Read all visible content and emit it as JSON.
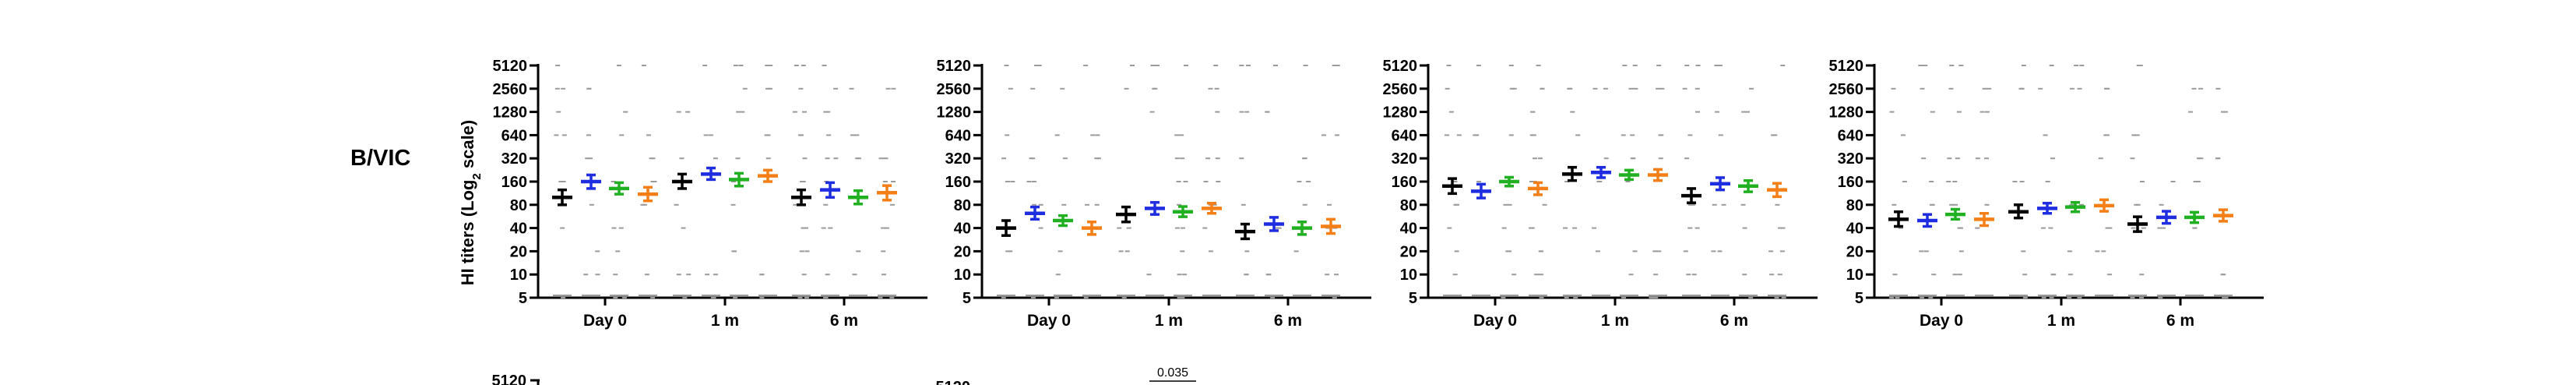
{
  "row_label": "B/VIC",
  "ylabel_prefix": "HI titers (Log",
  "ylabel_sub": "2",
  "ylabel_suffix": " scale)",
  "annotation": "0.035",
  "colors": {
    "group1": "#000000",
    "group2": "#1f2de0",
    "group3": "#21b021",
    "group4": "#f57f17",
    "dots": "#9a9a9a"
  },
  "chart_data": [
    {
      "type": "scatter",
      "title": "",
      "xlabel": "",
      "ylabel": "HI titers (Log2 scale)",
      "yscale": "log2",
      "ylim": [
        5,
        5120
      ],
      "yticks": [
        "5",
        "10",
        "20",
        "40",
        "80",
        "160",
        "320",
        "640",
        "1280",
        "2560",
        "5120"
      ],
      "categories": [
        "Day 0",
        "1 m",
        "6 m"
      ],
      "series": [
        {
          "color": "#000000",
          "mean": [
            100,
            160,
            100
          ],
          "lo": [
            80,
            130,
            80
          ],
          "hi": [
            125,
            200,
            125
          ]
        },
        {
          "color": "#1f2de0",
          "mean": [
            160,
            200,
            125
          ],
          "lo": [
            130,
            170,
            100
          ],
          "hi": [
            195,
            240,
            155
          ]
        },
        {
          "color": "#21b021",
          "mean": [
            130,
            170,
            100
          ],
          "lo": [
            110,
            140,
            82
          ],
          "hi": [
            155,
            205,
            122
          ]
        },
        {
          "color": "#f57f17",
          "mean": [
            110,
            190,
            115
          ],
          "lo": [
            90,
            160,
            92
          ],
          "hi": [
            135,
            225,
            142
          ]
        }
      ]
    },
    {
      "type": "scatter",
      "title": "",
      "xlabel": "",
      "ylabel": "",
      "yscale": "log2",
      "ylim": [
        5,
        5120
      ],
      "yticks": [
        "5",
        "10",
        "20",
        "40",
        "80",
        "160",
        "320",
        "640",
        "1280",
        "2560",
        "5120"
      ],
      "categories": [
        "Day 0",
        "1 m",
        "6 m"
      ],
      "series": [
        {
          "color": "#000000",
          "mean": [
            40,
            60,
            36
          ],
          "lo": [
            32,
            48,
            29
          ],
          "hi": [
            50,
            75,
            45
          ]
        },
        {
          "color": "#1f2de0",
          "mean": [
            62,
            72,
            45
          ],
          "lo": [
            52,
            60,
            37
          ],
          "hi": [
            75,
            86,
            55
          ]
        },
        {
          "color": "#21b021",
          "mean": [
            50,
            65,
            40
          ],
          "lo": [
            43,
            56,
            33
          ],
          "hi": [
            58,
            76,
            48
          ]
        },
        {
          "color": "#f57f17",
          "mean": [
            40,
            72,
            42
          ],
          "lo": [
            33,
            62,
            34
          ],
          "hi": [
            48,
            84,
            52
          ]
        }
      ]
    },
    {
      "type": "scatter",
      "title": "",
      "xlabel": "",
      "ylabel": "",
      "yscale": "log2",
      "ylim": [
        5,
        5120
      ],
      "yticks": [
        "5",
        "10",
        "20",
        "40",
        "80",
        "160",
        "320",
        "640",
        "1280",
        "2560",
        "5120"
      ],
      "categories": [
        "Day 0",
        "1 m",
        "6 m"
      ],
      "series": [
        {
          "color": "#000000",
          "mean": [
            140,
            200,
            105
          ],
          "lo": [
            112,
            165,
            85
          ],
          "hi": [
            175,
            245,
            130
          ]
        },
        {
          "color": "#1f2de0",
          "mean": [
            120,
            210,
            150
          ],
          "lo": [
            98,
            180,
            125
          ],
          "hi": [
            148,
            245,
            180
          ]
        },
        {
          "color": "#21b021",
          "mean": [
            160,
            195,
            140
          ],
          "lo": [
            140,
            170,
            118
          ],
          "hi": [
            182,
            225,
            165
          ]
        },
        {
          "color": "#f57f17",
          "mean": [
            130,
            195,
            125
          ],
          "lo": [
            108,
            165,
            102
          ],
          "hi": [
            155,
            230,
            152
          ]
        }
      ]
    },
    {
      "type": "scatter",
      "title": "",
      "xlabel": "",
      "ylabel": "",
      "yscale": "log2",
      "ylim": [
        5,
        5120
      ],
      "yticks": [
        "5",
        "10",
        "20",
        "40",
        "80",
        "160",
        "320",
        "640",
        "1280",
        "2560",
        "5120"
      ],
      "categories": [
        "Day 0",
        "1 m",
        "6 m"
      ],
      "series": [
        {
          "color": "#000000",
          "mean": [
            52,
            65,
            45
          ],
          "lo": [
            42,
            54,
            36
          ],
          "hi": [
            65,
            80,
            56
          ]
        },
        {
          "color": "#1f2de0",
          "mean": [
            50,
            72,
            55
          ],
          "lo": [
            42,
            62,
            46
          ],
          "hi": [
            60,
            84,
            66
          ]
        },
        {
          "color": "#21b021",
          "mean": [
            60,
            75,
            55
          ],
          "lo": [
            52,
            65,
            47
          ],
          "hi": [
            70,
            86,
            64
          ]
        },
        {
          "color": "#f57f17",
          "mean": [
            52,
            78,
            58
          ],
          "lo": [
            43,
            66,
            49
          ],
          "hi": [
            62,
            93,
            69
          ]
        }
      ]
    }
  ],
  "bottom_row_ticks": [
    "5120",
    "5120"
  ]
}
